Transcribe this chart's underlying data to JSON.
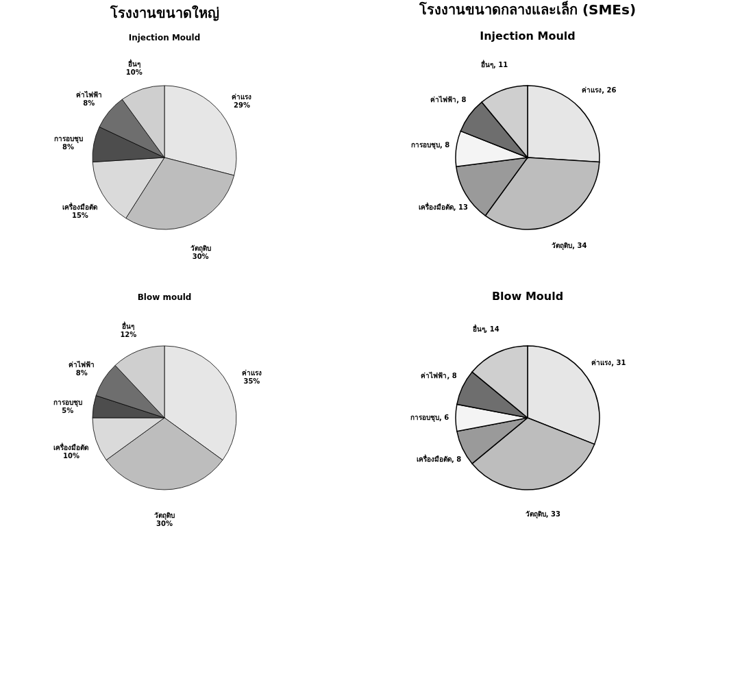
{
  "chart_data": [
    {
      "type": "pie",
      "title": "โรงงานขนาดใหญ่",
      "subtitle": "Injection Mould",
      "categories": [
        "ค่าแรง",
        "วัตถุดิบ",
        "เครื่องมือตัด",
        "การอบชุบ",
        "ค่าไฟฟ้า",
        "อื่นๆ"
      ],
      "values": [
        29,
        30,
        15,
        8,
        8,
        10
      ],
      "value_labels": [
        "29%",
        "30%",
        "15%",
        "8%",
        "8%",
        "10%"
      ],
      "colors": [
        "#e6e6e6",
        "#bdbdbd",
        "#dadada",
        "#4d4d4d",
        "#6e6e6e",
        "#cfcfcf"
      ]
    },
    {
      "type": "pie",
      "title": "โรงงานขนาดกลางและเล็ก (SMEs)",
      "subtitle": "Injection Mould",
      "categories": [
        "ค่าแรง",
        "วัตถุดิบ",
        "เครื่องมือตัด",
        "การอบชุบ",
        "ค่าไฟฟ้า",
        "อื่นๆ"
      ],
      "values": [
        26,
        34,
        13,
        8,
        8,
        11
      ],
      "value_labels": [
        "26",
        "34",
        "13",
        "8",
        "8",
        "11"
      ],
      "colors": [
        "#e6e6e6",
        "#bdbdbd",
        "#9a9a9a",
        "#f4f4f4",
        "#6e6e6e",
        "#cfcfcf"
      ]
    },
    {
      "type": "pie",
      "title": "Blow mould",
      "categories": [
        "ค่าแรง",
        "วัตถุดิบ",
        "เครื่องมือตัด",
        "การอบชุบ",
        "ค่าไฟฟ้า",
        "อื่นๆ"
      ],
      "values": [
        35,
        30,
        10,
        5,
        8,
        12
      ],
      "value_labels": [
        "35%",
        "30%",
        "10%",
        "5%",
        "8%",
        "12%"
      ],
      "colors": [
        "#e6e6e6",
        "#bdbdbd",
        "#dadada",
        "#4d4d4d",
        "#6e6e6e",
        "#cfcfcf"
      ]
    },
    {
      "type": "pie",
      "title": "Blow Mould",
      "categories": [
        "ค่าแรง",
        "วัตถุดิบ",
        "เครื่องมือตัด",
        "การอบชุบ",
        "ค่าไฟฟ้า",
        "อื่นๆ"
      ],
      "values": [
        31,
        33,
        8,
        6,
        8,
        14
      ],
      "value_labels": [
        "31",
        "33",
        "8",
        "6",
        "8",
        "14"
      ],
      "colors": [
        "#e6e6e6",
        "#bdbdbd",
        "#9a9a9a",
        "#f4f4f4",
        "#6e6e6e",
        "#cfcfcf"
      ]
    }
  ]
}
